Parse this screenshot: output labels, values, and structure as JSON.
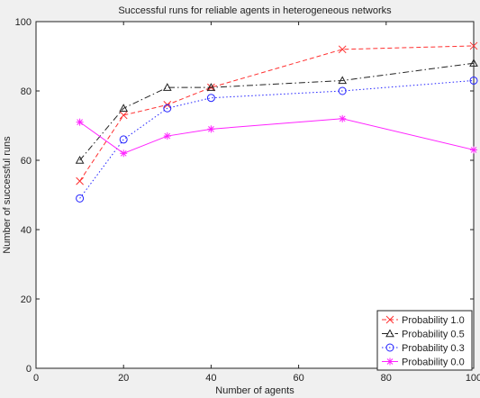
{
  "chart_data": {
    "type": "line",
    "title": "Successful runs for reliable agents in heterogeneous networks",
    "xlabel": "Number of agents",
    "ylabel": "Number of successful runs",
    "xlim": [
      0,
      100
    ],
    "ylim": [
      0,
      100
    ],
    "xticks": [
      0,
      20,
      40,
      60,
      80,
      100
    ],
    "yticks": [
      0,
      20,
      40,
      60,
      80,
      100
    ],
    "grid": false,
    "legend_position": "bottom-right",
    "x": [
      10,
      20,
      30,
      40,
      70,
      100
    ],
    "series": [
      {
        "name": "Probability 1.0",
        "values": [
          54,
          73,
          76,
          81,
          92,
          93
        ],
        "color": "#ff3030",
        "dash": "5,3",
        "marker": "x"
      },
      {
        "name": "Probability 0.5",
        "values": [
          60,
          75,
          81,
          81,
          83,
          88
        ],
        "color": "#222222",
        "dash": "7,3,1.5,3",
        "marker": "triangle"
      },
      {
        "name": "Probability 0.3",
        "values": [
          49,
          66,
          75,
          78,
          80,
          83
        ],
        "color": "#2222ff",
        "dash": "1.5,2.5",
        "marker": "circle"
      },
      {
        "name": "Probability 0.0",
        "values": [
          71,
          62,
          67,
          69,
          72,
          63
        ],
        "color": "#ff22ff",
        "dash": "",
        "marker": "star"
      }
    ]
  }
}
